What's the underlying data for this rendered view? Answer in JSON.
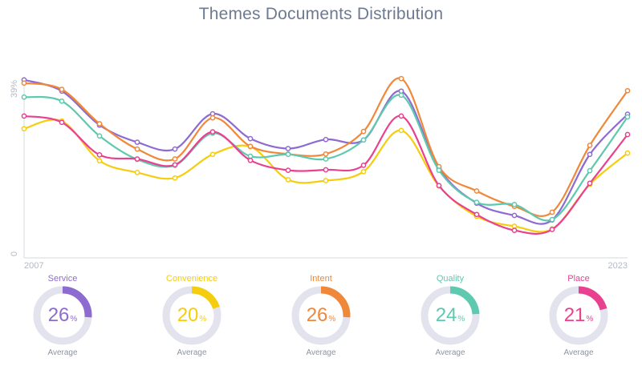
{
  "chart_data": {
    "type": "line",
    "title": "Themes Documents Distribution",
    "x_start_label": "2007",
    "x_end_label": "2023",
    "y_top_label": "39%",
    "y_bottom_label": "0",
    "x": [
      2007,
      2008,
      2009,
      2010,
      2011,
      2012,
      2013,
      2014,
      2015,
      2016,
      2017,
      2018,
      2019,
      2020,
      2021,
      2022,
      2023
    ],
    "ylim": [
      0,
      39
    ],
    "grid": false,
    "series": [
      {
        "name": "Service",
        "color": "#8e6bd1",
        "values": [
          39.4,
          36.9,
          29.4,
          25.6,
          24.1,
          31.9,
          26.4,
          24.2,
          26.2,
          26.1,
          36.9,
          19.8,
          12.1,
          9.4,
          8.4,
          22.9,
          31.8
        ]
      },
      {
        "name": "Convenience",
        "color": "#f5cd0f",
        "values": [
          28.6,
          30.3,
          21.5,
          18.9,
          17.7,
          22.9,
          24.6,
          17.3,
          17.1,
          19.1,
          28.2,
          15.9,
          9.2,
          7.0,
          6.4,
          16.3,
          23.2
        ]
      },
      {
        "name": "Intent",
        "color": "#f0883a",
        "values": [
          38.7,
          37.3,
          29.7,
          24.1,
          21.9,
          31.0,
          24.7,
          23.0,
          23.0,
          28.0,
          39.7,
          20.2,
          14.8,
          11.4,
          10.1,
          24.9,
          37.0
        ]
      },
      {
        "name": "Quality",
        "color": "#5ec9ae",
        "values": [
          35.6,
          34.7,
          27.0,
          21.8,
          20.5,
          27.6,
          22.5,
          22.9,
          21.9,
          26.1,
          36.0,
          19.4,
          12.3,
          11.8,
          8.5,
          19.3,
          31.2
        ]
      },
      {
        "name": "Place",
        "color": "#e8418f",
        "values": [
          31.4,
          30.0,
          22.8,
          21.9,
          20.6,
          27.9,
          21.6,
          19.4,
          19.5,
          20.5,
          31.4,
          16.0,
          9.6,
          6.1,
          6.3,
          16.5,
          27.3
        ]
      }
    ]
  },
  "gauges": [
    {
      "name": "Service",
      "value": "26",
      "percent": 26,
      "unit": "%",
      "sub": "Average",
      "color": "#8e6bd1"
    },
    {
      "name": "Convenience",
      "value": "20",
      "percent": 20,
      "unit": "%",
      "sub": "Average",
      "color": "#f5cd0f"
    },
    {
      "name": "Intent",
      "value": "26",
      "percent": 26,
      "unit": "%",
      "sub": "Average",
      "color": "#f0883a"
    },
    {
      "name": "Quality",
      "value": "24",
      "percent": 24,
      "unit": "%",
      "sub": "Average",
      "color": "#5ec9ae"
    },
    {
      "name": "Place",
      "value": "21",
      "percent": 21,
      "unit": "%",
      "sub": "Average",
      "color": "#e8418f"
    }
  ]
}
